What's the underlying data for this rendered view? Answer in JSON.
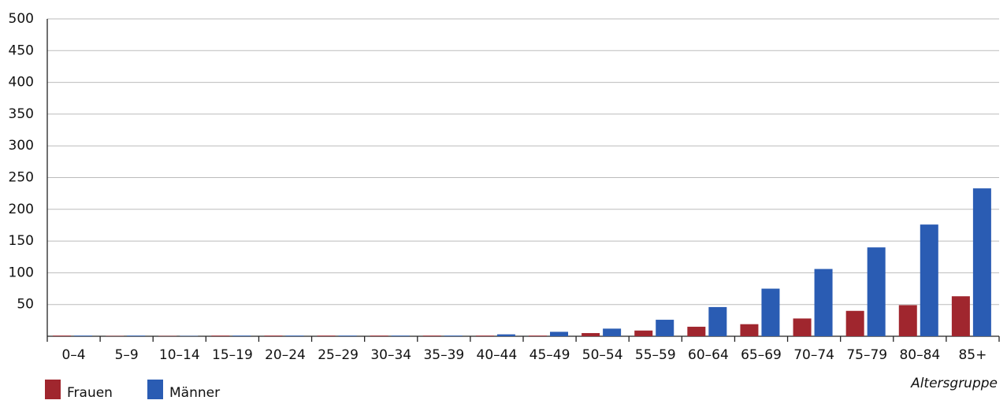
{
  "chart_data": {
    "type": "bar",
    "x_label": "Altersgruppe",
    "categories": [
      "0–4",
      "5–9",
      "10–14",
      "15–19",
      "20–24",
      "25–29",
      "30–34",
      "35–39",
      "40–44",
      "45–49",
      "50–54",
      "55–59",
      "60–64",
      "65–69",
      "70–74",
      "75–79",
      "80–84",
      "85+"
    ],
    "series": [
      {
        "name": "Frauen",
        "color": "#a0262e",
        "values": [
          1,
          0.5,
          0.5,
          1,
          1,
          1,
          1,
          1,
          1,
          1,
          5,
          9,
          15,
          19,
          28,
          40,
          49,
          63
        ]
      },
      {
        "name": "Männer",
        "color": "#2a5cb3",
        "values": [
          1,
          1,
          0.5,
          1,
          1,
          1,
          1,
          1,
          3,
          7,
          12,
          26,
          46,
          75,
          106,
          140,
          176,
          233
        ]
      }
    ],
    "ylim": [
      0,
      500
    ],
    "yticks": [
      50,
      100,
      150,
      200,
      250,
      300,
      350,
      400,
      450,
      500
    ],
    "grid": true
  }
}
